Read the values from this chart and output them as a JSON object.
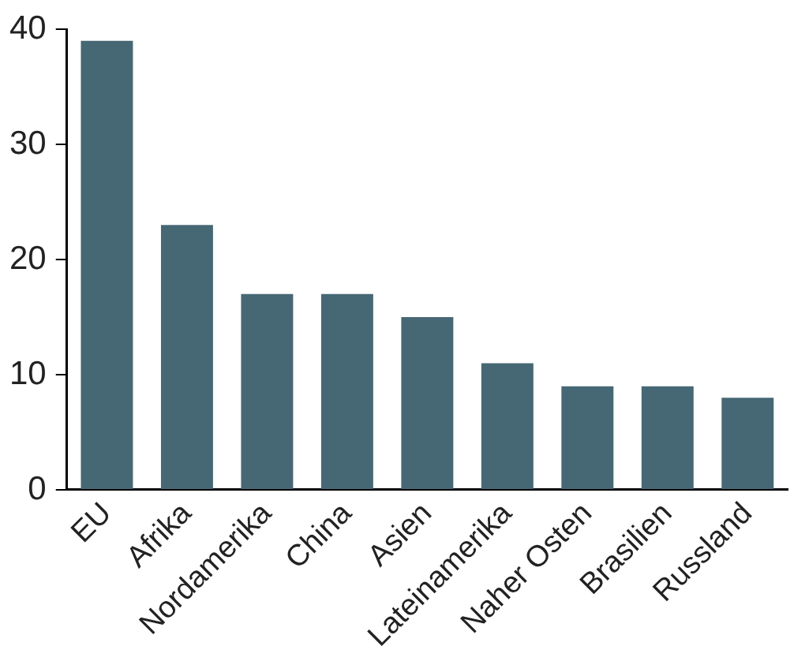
{
  "chart_data": {
    "type": "bar",
    "categories": [
      "EU",
      "Afrika",
      "Nordamerika",
      "China",
      "Asien",
      "Lateinamerika",
      "Naher Osten",
      "Brasilien",
      "Russland"
    ],
    "values": [
      39,
      23,
      17,
      17,
      15,
      11,
      9,
      9,
      8
    ],
    "color": "#466874",
    "ylim": [
      0,
      40
    ],
    "yticks": [
      0,
      10,
      20,
      30,
      40
    ],
    "grid": false
  }
}
